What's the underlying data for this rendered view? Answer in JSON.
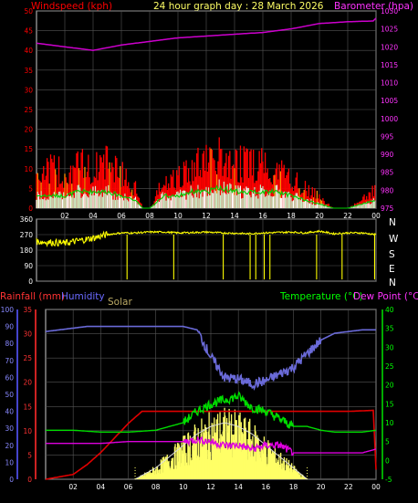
{
  "header": {
    "title": "24 hour graph day : 28 March 2026",
    "windspeed_label": "Windspeed (kph)",
    "barometer_label": "Barometer (hpa)",
    "rain_label": "Rainfall (mm)",
    "humidity_label": "Humidity",
    "solar_label": "Solar",
    "temperature_label": "Temperature (°C)",
    "dewpoint_label": "Dew Point (°C)"
  },
  "compass_labels": [
    "N",
    "W",
    "S",
    "E",
    "N"
  ],
  "colors": {
    "windspeed": "#ff0000",
    "gust_alt": "#ff8c00",
    "wind_avg": "#00cc00",
    "wind_fill": "#c8f0c8",
    "barometer": "#cc00cc",
    "direction": "#ffff00",
    "rain": "#e00000",
    "humidity": "#6a6ad8",
    "solar_fill": "#ffff66",
    "solar_line": "#dcdcdc",
    "temperature": "#00dd00",
    "dewpoint": "#dd00dd",
    "grid": "#555555",
    "frame": "#cccccc"
  },
  "chart_data": [
    {
      "type": "line",
      "name": "wind-barometer",
      "x_ticks": [
        "02",
        "04",
        "06",
        "08",
        "10",
        "12",
        "14",
        "16",
        "18",
        "20",
        "22",
        "00"
      ],
      "x_range": [
        0,
        24
      ],
      "left_axis": {
        "label": "Windspeed (kph)",
        "range": [
          0,
          50
        ],
        "ticks": [
          0,
          5,
          10,
          15,
          20,
          25,
          30,
          35,
          40,
          45,
          50
        ]
      },
      "right_axis": {
        "label": "Barometer (hpa)",
        "range": [
          975,
          1030
        ],
        "ticks": [
          975,
          980,
          985,
          990,
          995,
          1000,
          1005,
          1010,
          1015,
          1020,
          1025,
          1030
        ]
      },
      "gust_series": {
        "x": [
          0,
          1,
          2,
          3,
          4,
          5,
          6,
          7,
          7.5,
          8,
          9,
          10,
          11,
          12,
          13,
          14,
          15,
          16,
          17,
          18,
          19,
          20,
          21,
          22,
          23,
          24
        ],
        "values": [
          9,
          10,
          9,
          11,
          10,
          12,
          9,
          5,
          0,
          0,
          7,
          8,
          11,
          12,
          13,
          12,
          11,
          12,
          10,
          8,
          5,
          3,
          0,
          0,
          2,
          5
        ]
      },
      "avg_series": {
        "x": [
          0,
          1,
          2,
          3,
          4,
          5,
          6,
          7,
          7.5,
          8,
          9,
          10,
          11,
          12,
          13,
          14,
          15,
          16,
          17,
          18,
          19,
          20,
          21,
          22,
          23,
          24
        ],
        "values": [
          3,
          3,
          3,
          4,
          4,
          4,
          3,
          2,
          0,
          0,
          3,
          3,
          4,
          4,
          5,
          4,
          4,
          4,
          4,
          3,
          2,
          1,
          0,
          0,
          1,
          2
        ]
      },
      "barometer_series": {
        "x": [
          0,
          2,
          4,
          6,
          8,
          10,
          12,
          14,
          16,
          18,
          20,
          22,
          23.8,
          24
        ],
        "values": [
          1021,
          1020,
          1019,
          1020.5,
          1021.5,
          1022.5,
          1023,
          1023.5,
          1024,
          1025,
          1026.5,
          1027,
          1027.2,
          1028
        ]
      }
    },
    {
      "type": "line",
      "name": "wind-direction",
      "x_ticks": [
        "02",
        "04",
        "06",
        "08",
        "10",
        "12",
        "14",
        "16",
        "18",
        "20",
        "22",
        "00"
      ],
      "x_range": [
        0,
        24
      ],
      "left_axis": {
        "range": [
          0,
          360
        ],
        "ticks": [
          0,
          90,
          180,
          270,
          360
        ]
      },
      "right_axis_labels": [
        "N",
        "W",
        "S",
        "E",
        "N"
      ],
      "direction_series": {
        "x": [
          0,
          1,
          2,
          3,
          4,
          5,
          6,
          7,
          8,
          9,
          10,
          11,
          12,
          13,
          14,
          15,
          16,
          17,
          18,
          19,
          20,
          21,
          22,
          23,
          24
        ],
        "values": [
          230,
          225,
          220,
          235,
          250,
          270,
          280,
          280,
          285,
          285,
          280,
          282,
          285,
          280,
          278,
          275,
          280,
          282,
          285,
          280,
          290,
          275,
          280,
          280,
          270
        ]
      }
    },
    {
      "type": "line",
      "name": "rain-humidity-solar-temperature",
      "x_ticks": [
        "02",
        "04",
        "06",
        "08",
        "10",
        "12",
        "14",
        "16",
        "18",
        "20",
        "22",
        "00"
      ],
      "x_range": [
        0,
        24
      ],
      "humidity_axis": {
        "label": "Humidity",
        "range": [
          0,
          100
        ],
        "ticks": [
          0,
          10,
          20,
          30,
          40,
          50,
          60,
          70,
          80,
          90,
          100
        ]
      },
      "rain_axis": {
        "label": "Rainfall (mm)",
        "range": [
          0,
          35
        ],
        "ticks": [
          0,
          5,
          10,
          15,
          20,
          25,
          30,
          35
        ]
      },
      "temperature_axis": {
        "label": "Temperature (°C)",
        "range": [
          -5,
          40
        ],
        "ticks": [
          -5,
          0,
          5,
          10,
          15,
          20,
          25,
          30,
          35,
          40
        ]
      },
      "rain_series": {
        "x": [
          0,
          1,
          2,
          3,
          4,
          5,
          6,
          7,
          8,
          9,
          10,
          12,
          14,
          16,
          18,
          20,
          22,
          23.8,
          24
        ],
        "values": [
          0,
          0.5,
          1,
          3,
          5.5,
          8.5,
          11.5,
          14,
          14,
          14,
          14,
          14,
          14,
          14,
          14,
          14,
          14,
          14.2,
          2
        ]
      },
      "humidity_series": {
        "x": [
          0,
          1,
          2,
          3,
          4,
          5,
          6,
          7,
          8,
          9,
          10,
          11,
          12,
          13,
          14,
          15,
          16,
          17,
          18,
          19,
          20,
          21,
          22,
          23,
          24
        ],
        "values": [
          87,
          88,
          89,
          90,
          90,
          90,
          90,
          90,
          90,
          90,
          90,
          88,
          72,
          60,
          59,
          56,
          58,
          62,
          66,
          74,
          82,
          86,
          87,
          88,
          88
        ]
      },
      "solar_series": {
        "x": [
          6.5,
          7,
          8,
          9,
          10,
          11,
          12,
          13,
          14,
          15,
          16,
          17,
          18,
          19
        ],
        "values": [
          0,
          1,
          3,
          6,
          9,
          12,
          14,
          15,
          14,
          12,
          9,
          6,
          3,
          0
        ]
      },
      "temperature_series": {
        "x": [
          0,
          2,
          4,
          6,
          8,
          9,
          10,
          11,
          12,
          13,
          14,
          15,
          16,
          17,
          18,
          19,
          20,
          21,
          22,
          23,
          24
        ],
        "values": [
          8,
          8,
          7.5,
          7.5,
          8,
          9,
          10,
          13,
          15,
          16,
          17,
          14,
          13,
          11,
          9,
          9,
          8,
          7.5,
          7.5,
          7.5,
          8
        ]
      },
      "dewpoint_series": {
        "x": [
          0,
          2,
          4,
          6,
          8,
          10,
          11,
          12,
          13,
          14,
          15,
          16,
          17,
          18,
          19,
          20,
          21,
          22,
          23,
          24
        ],
        "values": [
          4.5,
          4.5,
          4.5,
          5,
          5,
          5,
          5.5,
          5,
          4,
          4,
          3,
          4,
          4,
          2,
          2,
          2,
          2,
          2,
          2,
          3
        ]
      }
    }
  ]
}
